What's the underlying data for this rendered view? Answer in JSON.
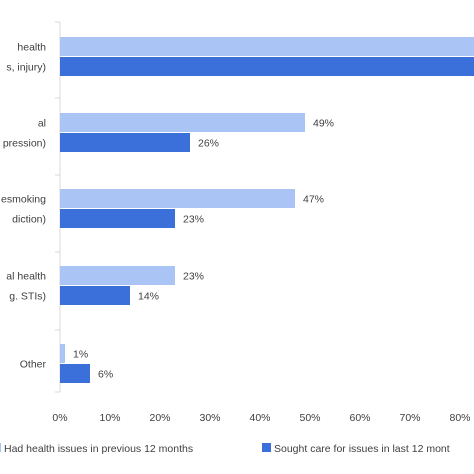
{
  "chart_data": {
    "type": "bar",
    "orientation": "horizontal",
    "categories": [
      [
        "health",
        "s, injury)"
      ],
      [
        "al",
        "pression)"
      ],
      [
        "esmoking",
        "diction)"
      ],
      [
        "al health",
        "g. STIs)"
      ],
      [
        "Other"
      ]
    ],
    "series": [
      {
        "name": "Had health issues in previous 12 months",
        "color": "#a9c4f5",
        "values": [
          85,
          49,
          47,
          23,
          1
        ],
        "labels": [
          "",
          "49%",
          "47%",
          "23%",
          "1%"
        ]
      },
      {
        "name": "Sought care for issues in last 12 mont",
        "color": "#3b6fd9",
        "values": [
          85,
          26,
          23,
          14,
          6
        ],
        "labels": [
          "",
          "26%",
          "23%",
          "14%",
          "6%"
        ]
      }
    ],
    "xlim": [
      0,
      85
    ],
    "x_ticks": [
      "0%",
      "10%",
      "20%",
      "30%",
      "40%",
      "50%",
      "60%",
      "70%",
      "80%"
    ],
    "x_tick_values": [
      0,
      10,
      20,
      30,
      40,
      50,
      60,
      70,
      80
    ],
    "grid": false,
    "legend_position": "bottom"
  }
}
